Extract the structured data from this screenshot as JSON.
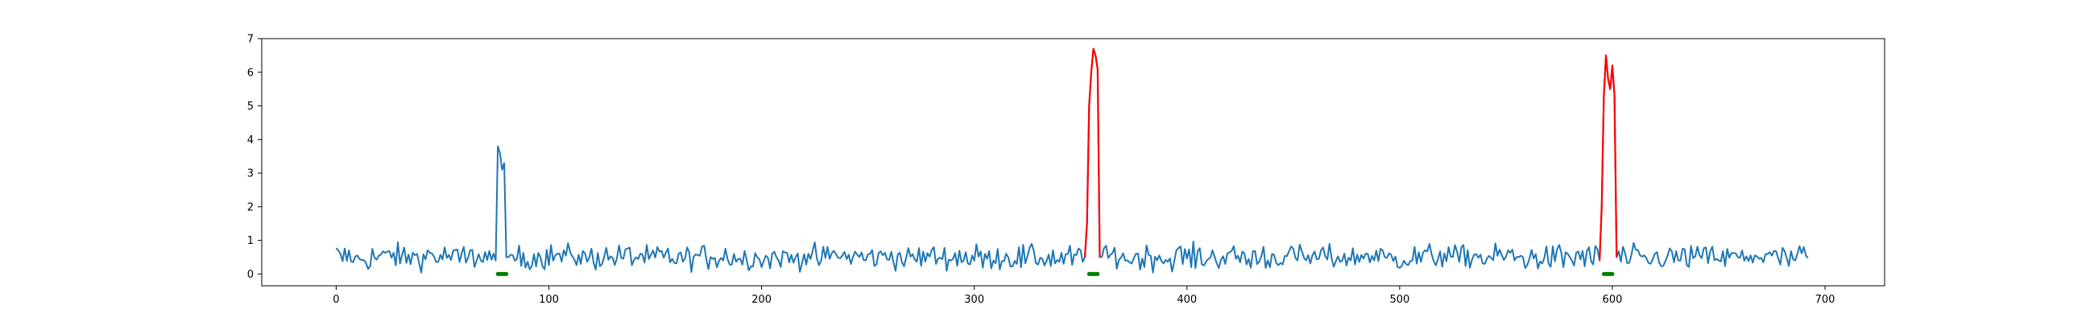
{
  "chart_data": {
    "type": "line",
    "title": "",
    "xlabel": "",
    "ylabel": "",
    "xlim": [
      -35,
      728
    ],
    "ylim": [
      -0.35,
      7.0
    ],
    "x_ticks": [
      0,
      100,
      200,
      300,
      400,
      500,
      600,
      700
    ],
    "y_ticks": [
      0,
      1,
      2,
      3,
      4,
      5,
      6,
      7
    ],
    "grid": false,
    "legend": "none",
    "baseline_noise": {
      "x_start": 0,
      "x_end": 692,
      "y_min": 0.0,
      "y_max": 1.0,
      "typical": 0.5
    },
    "series": [
      {
        "color": "#1f77b4",
        "role": "signal",
        "peaks": [
          {
            "x": [
              75,
              76,
              77,
              78,
              79,
              80
            ],
            "y": [
              0.4,
              3.8,
              3.6,
              3.1,
              3.3,
              0.5
            ]
          }
        ]
      },
      {
        "color": "#ff0000",
        "role": "highlighted",
        "segments": [
          {
            "x": [
              352,
              353,
              354,
              355,
              356,
              357,
              358,
              359
            ],
            "y": [
              0.5,
              1.5,
              5.0,
              6.0,
              6.7,
              6.5,
              6.1,
              0.5
            ]
          },
          {
            "x": [
              594,
              595,
              596,
              597,
              598,
              599,
              600,
              601,
              602
            ],
            "y": [
              0.4,
              2.0,
              5.3,
              6.5,
              5.8,
              5.5,
              6.2,
              5.3,
              0.5
            ]
          }
        ]
      },
      {
        "color": "#008000",
        "role": "markers",
        "spans": [
          [
            76,
            80
          ],
          [
            354,
            358
          ],
          [
            596,
            600
          ]
        ],
        "y": 0.0
      }
    ]
  }
}
